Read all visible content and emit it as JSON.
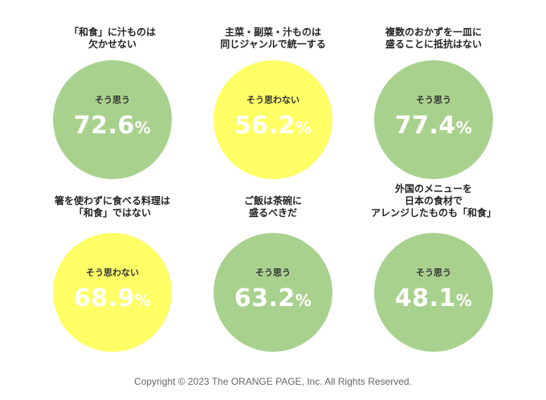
{
  "colors": {
    "green": "#a9d18e",
    "yellow": "#ffff66"
  },
  "chart_data": {
    "type": "pie",
    "items": [
      {
        "question": [
          "「和食」に汁ものは",
          "欠かせない"
        ],
        "answer": "そう思う",
        "value": 72.6,
        "unit": "%",
        "color": "green"
      },
      {
        "question": [
          "主菜・副菜・汁ものは",
          "同じジャンルで統一する"
        ],
        "answer": "そう思わない",
        "value": 56.2,
        "unit": "%",
        "color": "yellow"
      },
      {
        "question": [
          "複数のおかずを一皿に",
          "盛ることに抵抗はない"
        ],
        "answer": "そう思う",
        "value": 77.4,
        "unit": "%",
        "color": "green"
      },
      {
        "question": [
          "箸を使わずに食べる料理は",
          "「和食」ではない"
        ],
        "answer": "そう思わない",
        "value": 68.9,
        "unit": "%",
        "color": "yellow"
      },
      {
        "question": [
          "ご飯は茶碗に",
          "盛るべきだ"
        ],
        "answer": "そう思う",
        "value": 63.2,
        "unit": "%",
        "color": "green"
      },
      {
        "question": [
          "外国のメニューを",
          "日本の食材で",
          "アレンジしたものも「和食」"
        ],
        "answer": "そう思う",
        "value": 48.1,
        "unit": "%",
        "color": "green"
      }
    ]
  },
  "footer": {
    "copyright": "Copyright © 2023 The ORANGE PAGE, Inc. All Rights Reserved."
  }
}
